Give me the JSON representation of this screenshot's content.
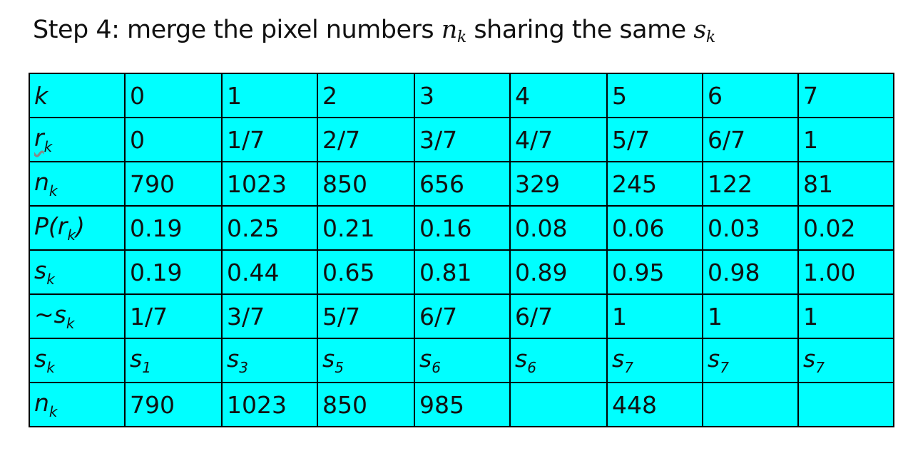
{
  "title": {
    "text": "Step 4: merge the pixel numbers",
    "n": "n",
    "n_sub": "k",
    "mid": "sharing the same",
    "s": "s",
    "s_sub": "k"
  },
  "rows": [
    {
      "label": "k",
      "label_sub": "",
      "cells": [
        "0",
        "1",
        "2",
        "3",
        "4",
        "5",
        "6",
        "7"
      ]
    },
    {
      "label": "r",
      "label_sub": "k",
      "cells": [
        "0",
        "1/7",
        "2/7",
        "3/7",
        "4/7",
        "5/7",
        "6/7",
        "1"
      ]
    },
    {
      "label": "n",
      "label_sub": "k",
      "cells": [
        "790",
        "1023",
        "850",
        "656",
        "329",
        "245",
        "122",
        "81"
      ]
    },
    {
      "label": "P(r",
      "label_sub": "k",
      "label_after": ")",
      "cells": [
        "0.19",
        "0.25",
        "0.21",
        "0.16",
        "0.08",
        "0.06",
        "0.03",
        "0.02"
      ]
    },
    {
      "label": "s",
      "label_sub": "k",
      "cells": [
        "0.19",
        "0.44",
        "0.65",
        "0.81",
        "0.89",
        "0.95",
        "0.98",
        "1.00"
      ]
    },
    {
      "label": "~s",
      "label_sub": "k",
      "cells": [
        "1/7",
        "3/7",
        "5/7",
        "6/7",
        "6/7",
        "1",
        "1",
        "1"
      ]
    },
    {
      "label": "s",
      "label_sub": "k",
      "cells": [
        "s",
        "s",
        "s",
        "s",
        "s",
        "s",
        "s",
        "s"
      ],
      "cell_subs": [
        "1",
        "3",
        "5",
        "6",
        "6",
        "7",
        "7",
        "7"
      ],
      "red_color": "#c00000"
    },
    {
      "label": "n",
      "label_sub": "k",
      "cells": [
        "790",
        "1023",
        "850",
        "985",
        "",
        "448",
        "",
        ""
      ]
    }
  ],
  "colors": {
    "table_bg": "#00ffff",
    "border": "#000000",
    "highlight": "#c00000"
  }
}
